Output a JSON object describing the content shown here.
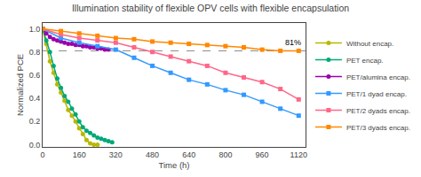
{
  "chart_data": {
    "type": "line",
    "title": "Illumination stability of flexible OPV cells with flexible encapsulation",
    "x_label": "Time (h)",
    "y_label": "Normalized PCE",
    "xlim": [
      0,
      1150
    ],
    "ylim": [
      -0.02,
      1.05
    ],
    "xticks": [
      0,
      160,
      320,
      480,
      640,
      800,
      960,
      1120
    ],
    "yticks": [
      {
        "value": 0.0,
        "label": "0.0"
      },
      0.2,
      0.4,
      0.6,
      0.8,
      {
        "value": 1.0,
        "label": "1.0"
      }
    ],
    "grid": false,
    "legend": "right",
    "reference_line": {
      "y": 0.81,
      "line_style": "dashed",
      "color": "#888888"
    },
    "annotations": [
      {
        "text": "81%",
        "x": 1140,
        "y": 0.825
      }
    ],
    "series": [
      {
        "name": "Without encap.",
        "color": "#b8b800",
        "marker": "circle",
        "x": [
          0,
          16,
          32,
          48,
          64,
          80,
          96,
          112,
          128,
          144,
          160,
          176,
          192,
          208,
          224,
          240
        ],
        "values": [
          1.0,
          0.87,
          0.72,
          0.62,
          0.52,
          0.45,
          0.38,
          0.3,
          0.25,
          0.2,
          0.14,
          0.09,
          0.04,
          0.01,
          0.0,
          0.0
        ]
      },
      {
        "name": "PET encap.",
        "color": "#00a878",
        "marker": "circle",
        "x": [
          0,
          16,
          32,
          48,
          64,
          80,
          96,
          112,
          128,
          144,
          160,
          176,
          192,
          208,
          224,
          240,
          256,
          272,
          288,
          304
        ],
        "values": [
          1.0,
          0.9,
          0.8,
          0.68,
          0.57,
          0.49,
          0.42,
          0.37,
          0.31,
          0.26,
          0.2,
          0.15,
          0.12,
          0.1,
          0.08,
          0.06,
          0.05,
          0.04,
          0.03,
          0.02
        ]
      },
      {
        "name": "PET/alumina encap.",
        "color": "#9900aa",
        "marker": "circle",
        "x": [
          0,
          16,
          32,
          48,
          64,
          80,
          96,
          112,
          128,
          144,
          160,
          176,
          192,
          208,
          224,
          240,
          256,
          272,
          288
        ],
        "values": [
          1.0,
          0.96,
          0.93,
          0.91,
          0.9,
          0.89,
          0.88,
          0.87,
          0.87,
          0.86,
          0.86,
          0.85,
          0.85,
          0.84,
          0.84,
          0.83,
          0.83,
          0.82,
          0.82
        ]
      },
      {
        "name": "PET/1 dyad encap.",
        "color": "#3399ff",
        "marker": "square",
        "x": [
          0,
          80,
          160,
          240,
          320,
          400,
          480,
          560,
          640,
          720,
          800,
          880,
          960,
          1040,
          1120
        ],
        "values": [
          1.0,
          0.92,
          0.88,
          0.85,
          0.82,
          0.75,
          0.68,
          0.62,
          0.56,
          0.52,
          0.47,
          0.43,
          0.37,
          0.31,
          0.25
        ]
      },
      {
        "name": "PET/2 dyads encap.",
        "color": "#ff6688",
        "marker": "square",
        "x": [
          0,
          80,
          160,
          240,
          320,
          400,
          480,
          560,
          640,
          720,
          800,
          880,
          960,
          1040,
          1120
        ],
        "values": [
          1.0,
          0.95,
          0.92,
          0.9,
          0.88,
          0.84,
          0.8,
          0.76,
          0.72,
          0.68,
          0.62,
          0.58,
          0.54,
          0.48,
          0.39
        ]
      },
      {
        "name": "PET/3 dyads encap.",
        "color": "#ff8800",
        "marker": "square",
        "x": [
          0,
          80,
          160,
          240,
          320,
          400,
          480,
          560,
          640,
          720,
          800,
          880,
          960,
          1040,
          1120
        ],
        "values": [
          1.0,
          0.98,
          0.96,
          0.94,
          0.92,
          0.91,
          0.89,
          0.88,
          0.87,
          0.86,
          0.85,
          0.84,
          0.82,
          0.81,
          0.81
        ]
      }
    ]
  }
}
